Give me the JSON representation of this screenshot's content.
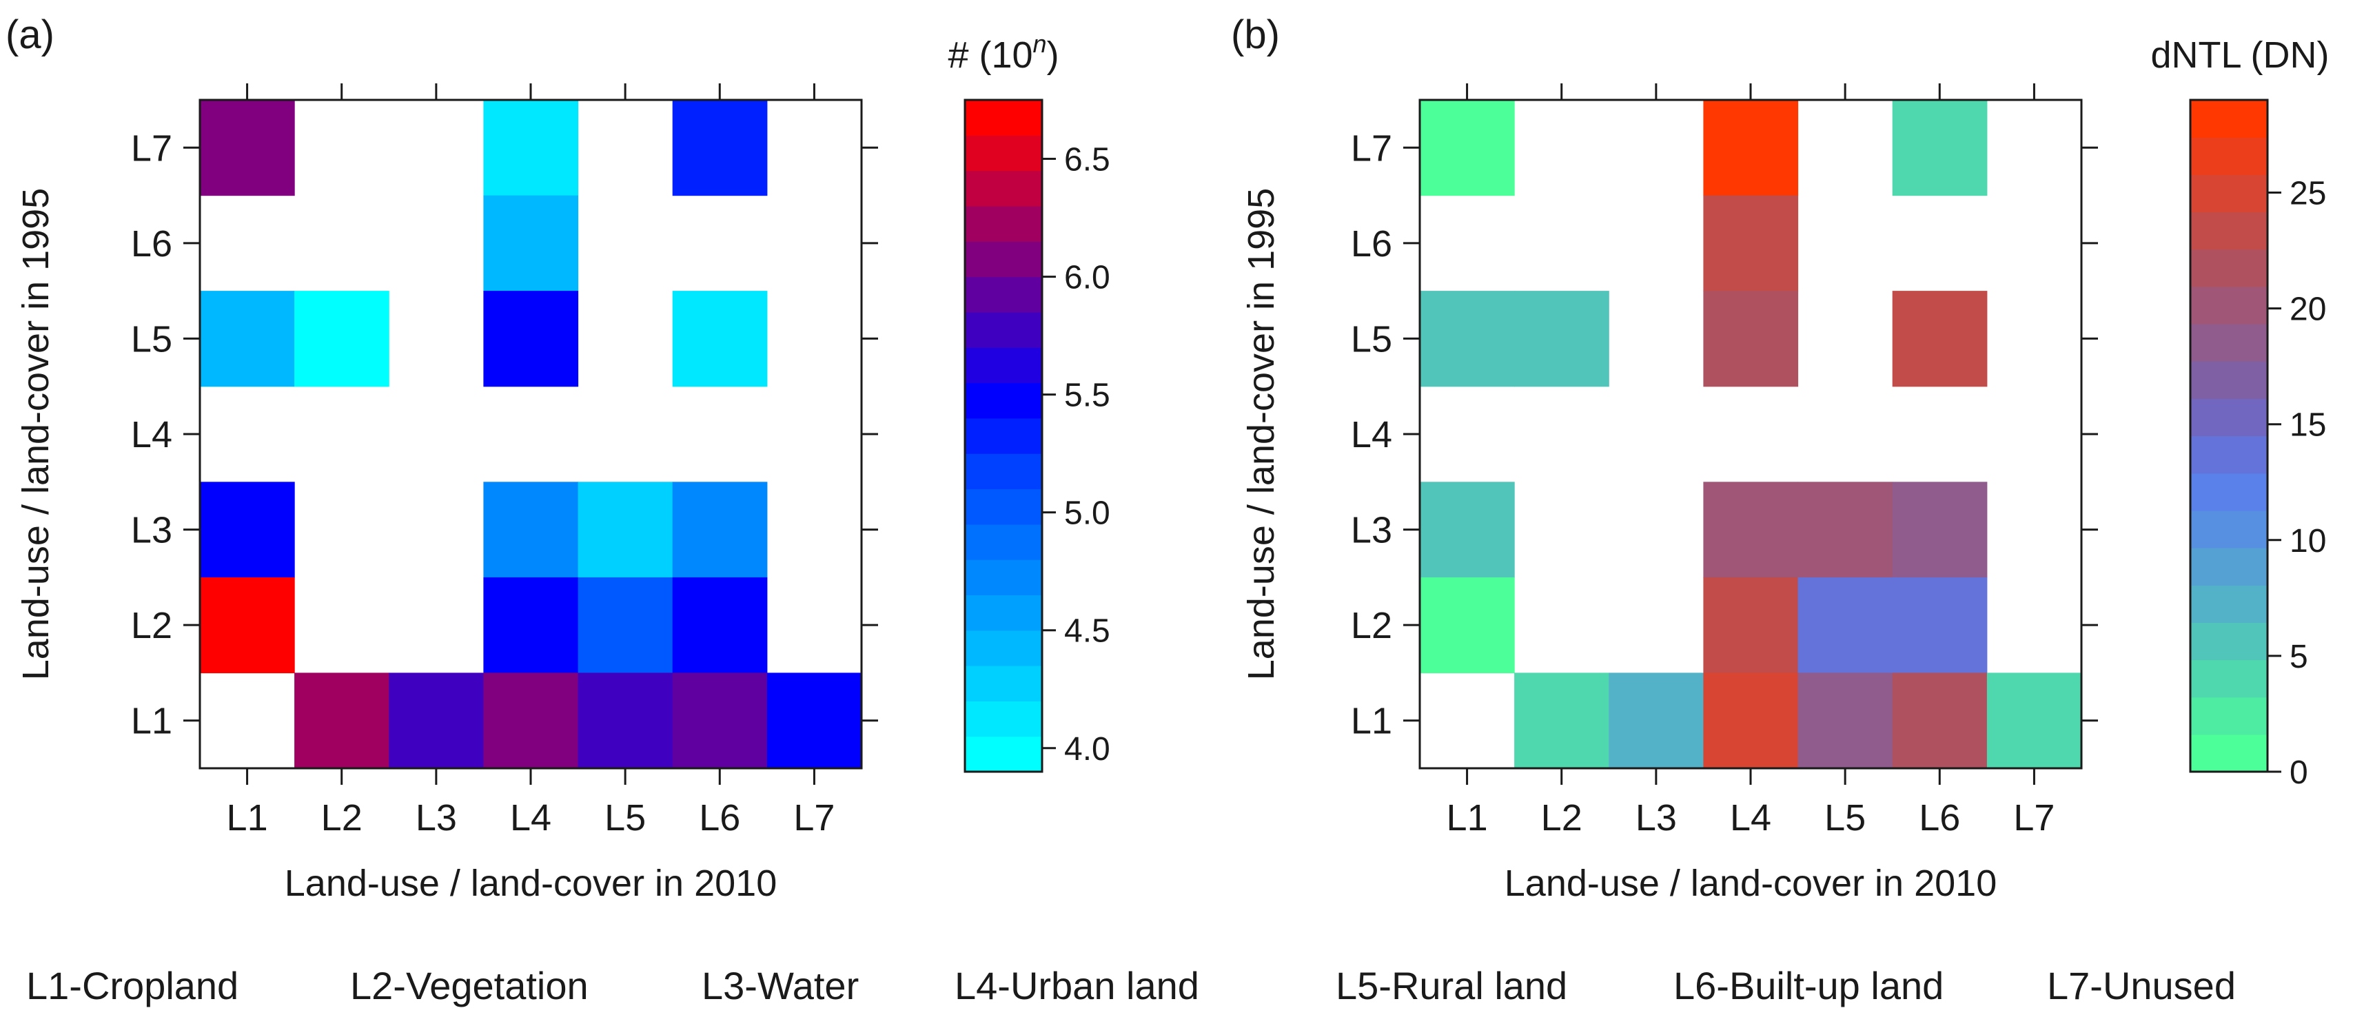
{
  "chart_data": [
    {
      "type": "heatmap",
      "panel_label": "(a)",
      "x_categories": [
        "L1",
        "L2",
        "L3",
        "L4",
        "L5",
        "L6",
        "L7"
      ],
      "y_categories": [
        "L1",
        "L2",
        "L3",
        "L4",
        "L5",
        "L6",
        "L7"
      ],
      "xlabel": "Land-use / land-cover in 2010",
      "ylabel": "Land-use / land-cover in 1995",
      "colorbar": {
        "title_main": "# (10",
        "title_exp": "n",
        "title_end": ")",
        "range": [
          3.9,
          6.75
        ],
        "ticks": [
          "4.0",
          "4.5",
          "5.0",
          "5.5",
          "6.0",
          "6.5"
        ],
        "tick_values": [
          4.0,
          4.5,
          5.0,
          5.5,
          6.0,
          6.5
        ],
        "colors": [
          "#00FFFF",
          "#00E8FF",
          "#00D0FF",
          "#00B8FF",
          "#00A0FF",
          "#0088FF",
          "#0070FF",
          "#0058FF",
          "#0040FF",
          "#0020FF",
          "#0000FF",
          "#2000E0",
          "#4000C0",
          "#6000A0",
          "#800080",
          "#A00060",
          "#C00040",
          "#E00020",
          "#FF0000"
        ]
      },
      "cells": [
        {
          "x": "L1",
          "y": "L7",
          "value": 6.05
        },
        {
          "x": "L4",
          "y": "L7",
          "value": 4.1
        },
        {
          "x": "L6",
          "y": "L7",
          "value": 5.3
        },
        {
          "x": "L4",
          "y": "L6",
          "value": 4.45
        },
        {
          "x": "L1",
          "y": "L5",
          "value": 4.45
        },
        {
          "x": "L2",
          "y": "L5",
          "value": 3.95
        },
        {
          "x": "L4",
          "y": "L5",
          "value": 5.5
        },
        {
          "x": "L6",
          "y": "L5",
          "value": 4.1
        },
        {
          "x": "L1",
          "y": "L3",
          "value": 5.5
        },
        {
          "x": "L4",
          "y": "L3",
          "value": 4.75
        },
        {
          "x": "L5",
          "y": "L3",
          "value": 4.3
        },
        {
          "x": "L6",
          "y": "L3",
          "value": 4.75
        },
        {
          "x": "L1",
          "y": "L2",
          "value": 6.7
        },
        {
          "x": "L4",
          "y": "L2",
          "value": 5.5
        },
        {
          "x": "L5",
          "y": "L2",
          "value": 5.1
        },
        {
          "x": "L6",
          "y": "L2",
          "value": 5.5
        },
        {
          "x": "L2",
          "y": "L1",
          "value": 6.2
        },
        {
          "x": "L3",
          "y": "L1",
          "value": 5.85
        },
        {
          "x": "L4",
          "y": "L1",
          "value": 6.0
        },
        {
          "x": "L5",
          "y": "L1",
          "value": 5.85
        },
        {
          "x": "L6",
          "y": "L1",
          "value": 5.9
        },
        {
          "x": "L7",
          "y": "L1",
          "value": 5.5
        }
      ]
    },
    {
      "type": "heatmap",
      "panel_label": "(b)",
      "x_categories": [
        "L1",
        "L2",
        "L3",
        "L4",
        "L5",
        "L6",
        "L7"
      ],
      "y_categories": [
        "L1",
        "L2",
        "L3",
        "L4",
        "L5",
        "L6",
        "L7"
      ],
      "xlabel": "Land-use / land-cover in 2010",
      "ylabel": "Land-use / land-cover in 1995",
      "colorbar": {
        "title_main": "dNTL (DN)",
        "range": [
          0,
          29
        ],
        "ticks": [
          "0",
          "5",
          "10",
          "15",
          "20",
          "25"
        ],
        "tick_values": [
          0,
          5,
          10,
          15,
          20,
          25
        ],
        "colors": [
          "#4DFF99",
          "#4EEBA3",
          "#4FD8AE",
          "#51C5BA",
          "#53B2C7",
          "#55A1D4",
          "#5790E0",
          "#5A80EA",
          "#6473D9",
          "#7166C0",
          "#8060A5",
          "#905B8D",
          "#A05676",
          "#B0515F",
          "#C24C49",
          "#D84533",
          "#EC3E1B",
          "#FF3700"
        ]
      },
      "cells": [
        {
          "x": "L1",
          "y": "L7",
          "value": 1
        },
        {
          "x": "L4",
          "y": "L7",
          "value": 28.5
        },
        {
          "x": "L6",
          "y": "L7",
          "value": 4
        },
        {
          "x": "L4",
          "y": "L6",
          "value": 24
        },
        {
          "x": "L1",
          "y": "L5",
          "value": 5
        },
        {
          "x": "L2",
          "y": "L5",
          "value": 5
        },
        {
          "x": "L4",
          "y": "L5",
          "value": 21
        },
        {
          "x": "L6",
          "y": "L5",
          "value": 24
        },
        {
          "x": "L1",
          "y": "L3",
          "value": 5
        },
        {
          "x": "L4",
          "y": "L3",
          "value": 20
        },
        {
          "x": "L5",
          "y": "L3",
          "value": 20
        },
        {
          "x": "L6",
          "y": "L3",
          "value": 18
        },
        {
          "x": "L1",
          "y": "L2",
          "value": 1
        },
        {
          "x": "L4",
          "y": "L2",
          "value": 23
        },
        {
          "x": "L5",
          "y": "L2",
          "value": 13
        },
        {
          "x": "L6",
          "y": "L2",
          "value": 13
        },
        {
          "x": "L2",
          "y": "L1",
          "value": 4
        },
        {
          "x": "L3",
          "y": "L1",
          "value": 7
        },
        {
          "x": "L4",
          "y": "L1",
          "value": 25
        },
        {
          "x": "L5",
          "y": "L1",
          "value": 18
        },
        {
          "x": "L6",
          "y": "L1",
          "value": 22
        },
        {
          "x": "L7",
          "y": "L1",
          "value": 4
        }
      ]
    }
  ],
  "legend": [
    "L1-Cropland",
    "L2-Vegetation",
    "L3-Water",
    "L4-Urban land",
    "L5-Rural land",
    "L6-Built-up land",
    "L7-Unused"
  ]
}
